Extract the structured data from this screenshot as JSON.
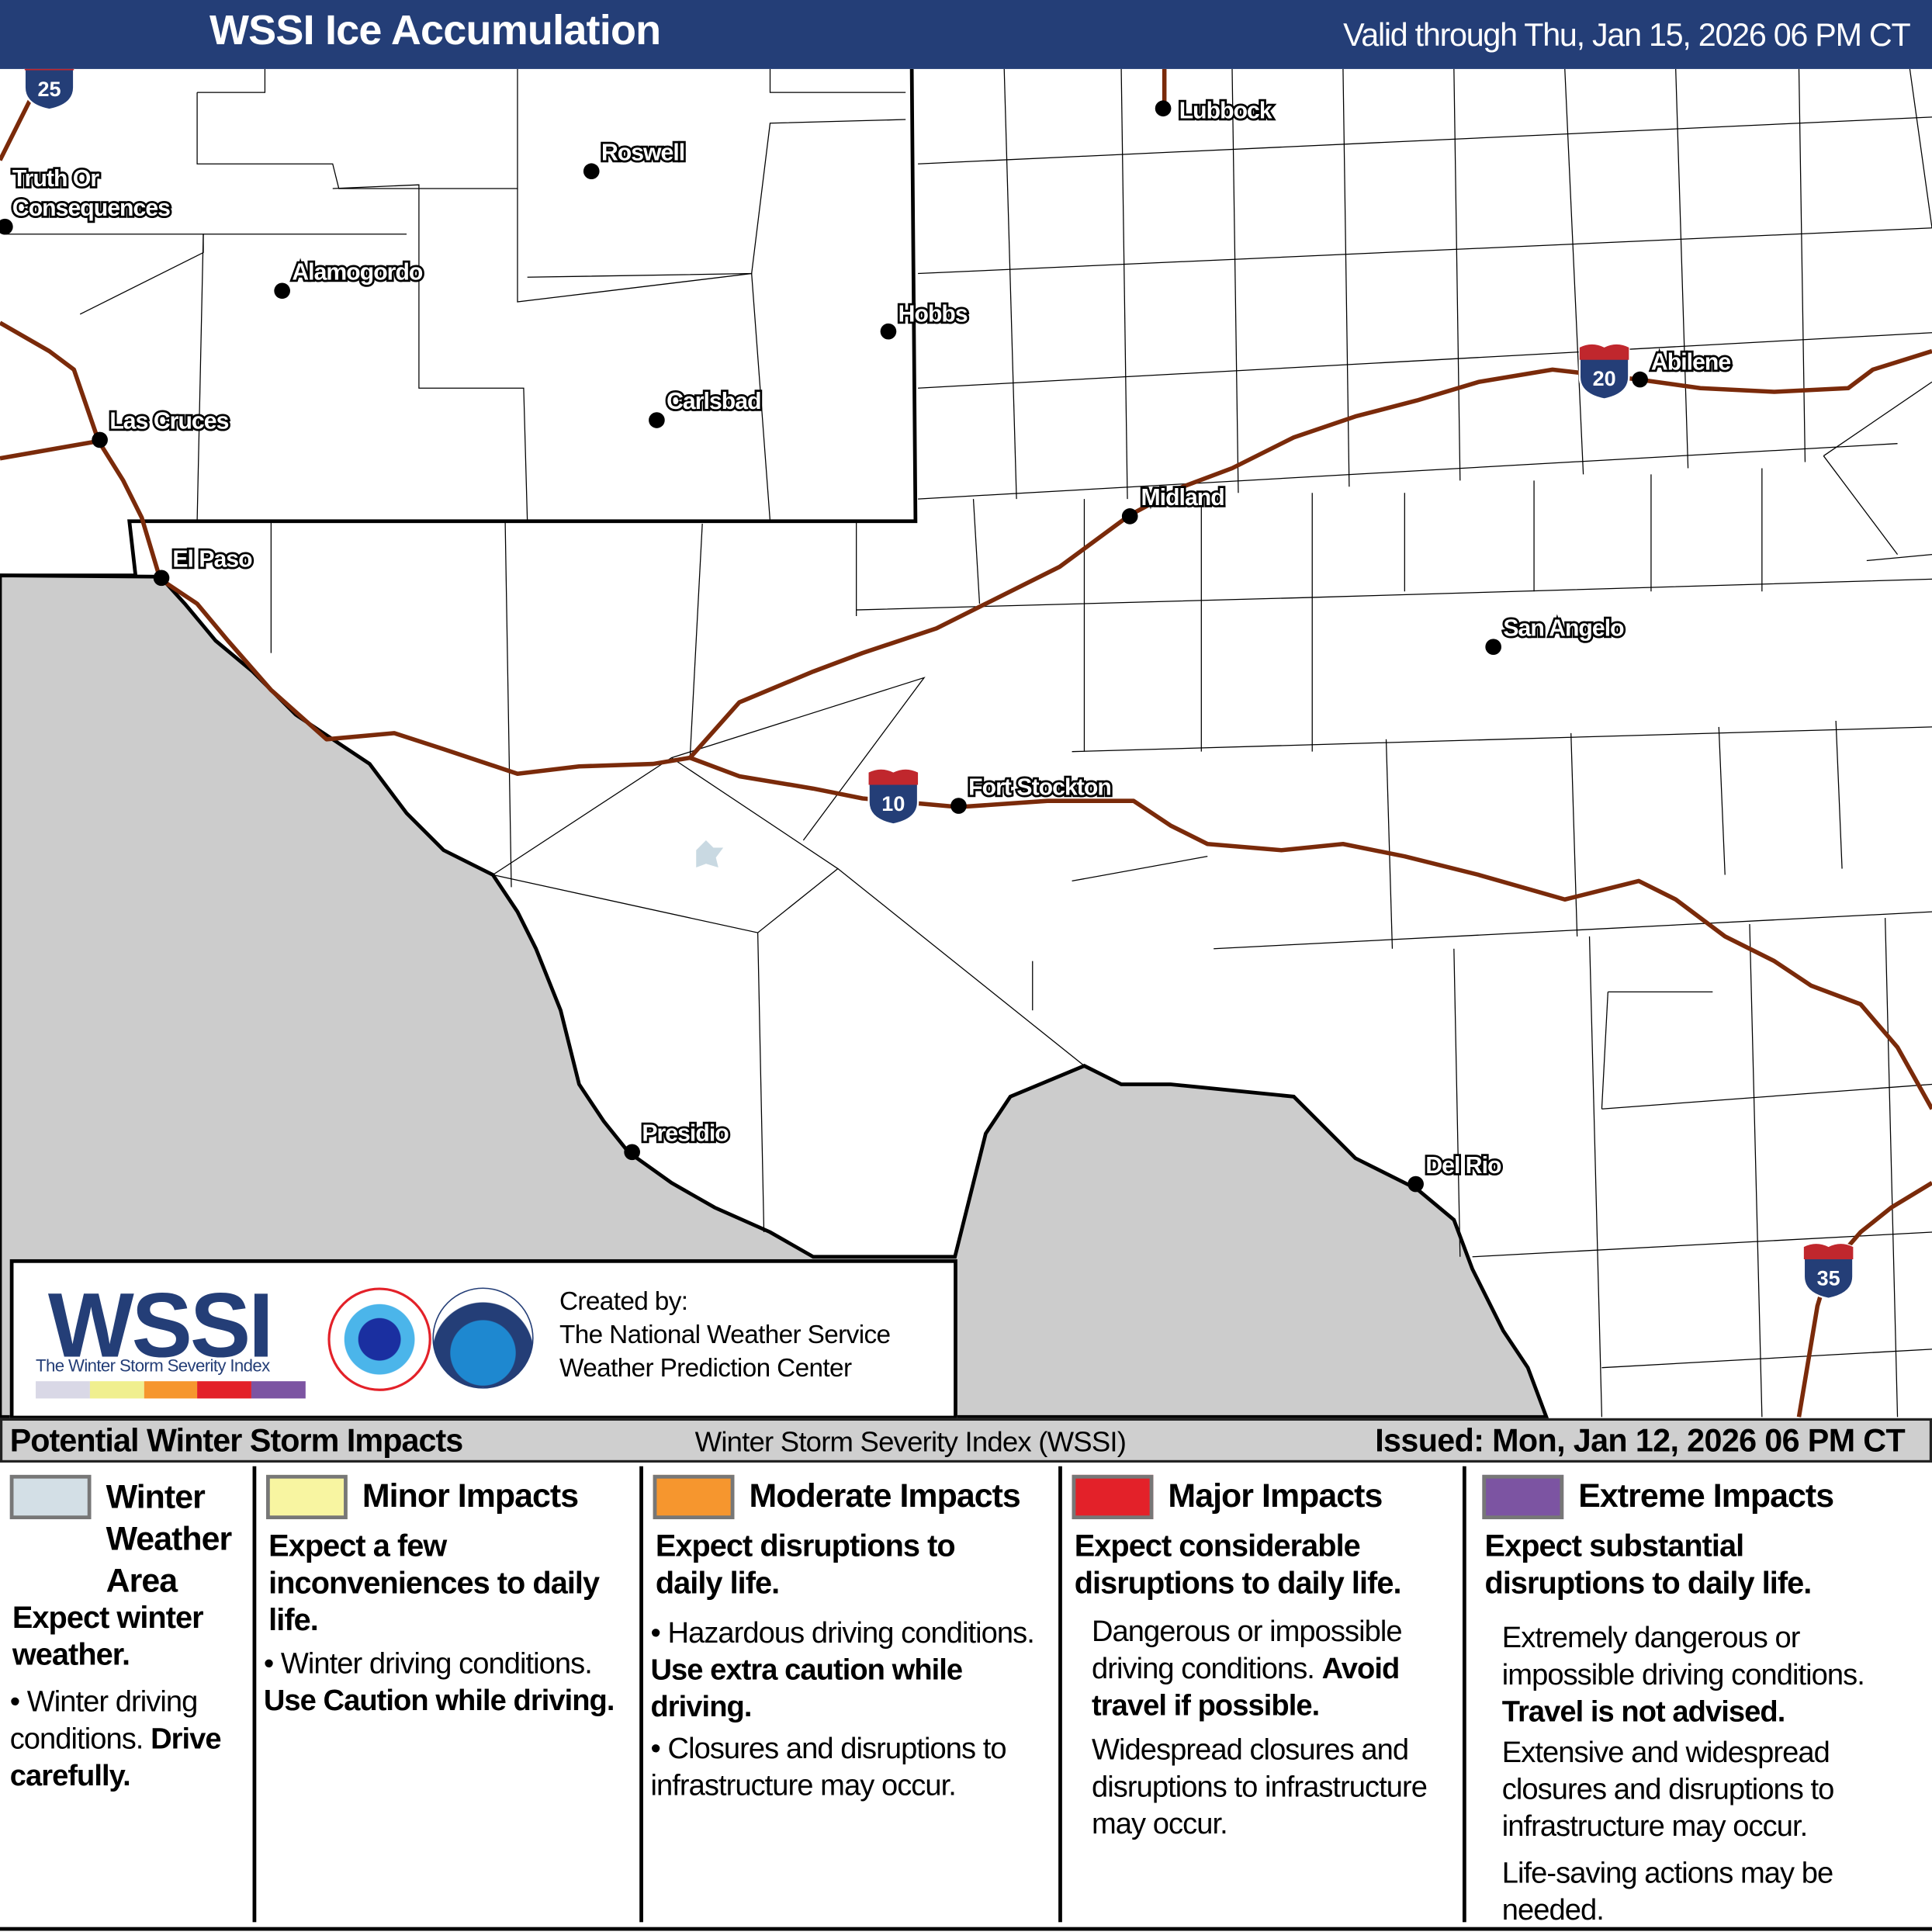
{
  "header": {
    "title": "WSSI Ice Accumulation",
    "valid": "Valid through Thu, Jan 15, 2026 06 PM CT",
    "background": "#243e77"
  },
  "map": {
    "colors": {
      "mexico": "#cccccc",
      "interstate": "#7a2a0a",
      "border": "#000000",
      "county": "#000000"
    },
    "cities": [
      {
        "name": "Lubbock"
      },
      {
        "name": "Roswell"
      },
      {
        "name": "Truth Or"
      },
      {
        "name": "Consequences"
      },
      {
        "name": "Alamogordo"
      },
      {
        "name": "Hobbs"
      },
      {
        "name": "Abilene"
      },
      {
        "name": "Carlsbad"
      },
      {
        "name": "Las Cruces"
      },
      {
        "name": "Midland"
      },
      {
        "name": "El Paso"
      },
      {
        "name": "San Angelo"
      },
      {
        "name": "Fort Stockton"
      },
      {
        "name": "Presidio"
      },
      {
        "name": "Del Rio"
      }
    ],
    "interstates": [
      {
        "number": "10"
      },
      {
        "number": "20"
      },
      {
        "number": "35"
      },
      {
        "number": "25"
      }
    ]
  },
  "credit": {
    "logo_text": "WSSI",
    "logo_subtitle": "The Winter Storm Severity Index",
    "created_by": "Created by:",
    "org1": "The National Weather Service",
    "org2": "Weather Prediction Center",
    "bar_colors": [
      "#d9d8e6",
      "#f0ef8f",
      "#f6962e",
      "#e32129",
      "#7c54a2"
    ]
  },
  "legend": {
    "title": "Potential Winter Storm Impacts",
    "index_name": "Winter Storm Severity Index (WSSI)",
    "issued": "Issued: Mon, Jan 12, 2026 06 PM CT",
    "categories": [
      {
        "color": "#d3dfe6",
        "label": "Winter Weather Area",
        "summary": "Expect winter weather.",
        "text1": "Winter driving conditions.",
        "bold1": "Drive carefully."
      },
      {
        "color": "#f8f5a1",
        "label": "Minor Impacts",
        "summary": "Expect a few inconveniences to daily life.",
        "text1": "Winter driving conditions.",
        "bold1": "Use Caution while driving."
      },
      {
        "color": "#f6962e",
        "label": "Moderate Impacts",
        "summary": "Expect disruptions to daily life.",
        "text1": "Hazardous driving conditions.",
        "bold1": "Use extra caution while driving.",
        "text2": "Closures and disruptions to infrastructure may occur."
      },
      {
        "color": "#e32129",
        "label": "Major Impacts",
        "summary": "Expect considerable disruptions to daily life.",
        "text1": "Dangerous or impossible driving conditions.",
        "bold1": "Avoid travel if possible.",
        "text2": "Widespread closures and disruptions to infrastructure may occur."
      },
      {
        "color": "#7c54a2",
        "label": "Extreme Impacts",
        "summary": "Expect substantial disruptions to daily life.",
        "text1": "Extremely dangerous or impossible driving conditions.",
        "bold1": "Travel is not advised.",
        "text2": "Extensive and widespread closures and disruptions to infrastructure may occur.",
        "text3": "Life-saving actions may be needed."
      }
    ]
  }
}
